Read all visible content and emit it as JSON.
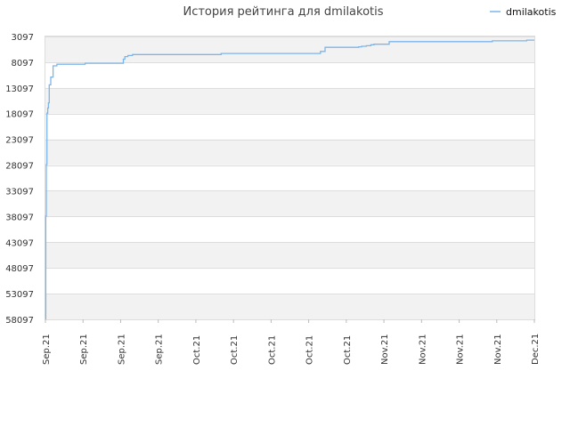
{
  "chart_data": {
    "type": "line",
    "title": "История рейтинга для dmilakotis",
    "xlabel": "",
    "ylabel": "",
    "legend": {
      "position": "top-right",
      "entries": [
        "dmilakotis"
      ]
    },
    "y_reversed": true,
    "ylim": [
      58097,
      3097
    ],
    "y_ticks": [
      3097,
      8097,
      13097,
      18097,
      23097,
      28097,
      33097,
      38097,
      43097,
      48097,
      53097,
      58097
    ],
    "y_tick_labels": [
      "3097",
      "8097",
      "13097",
      "18097",
      "23097",
      "28097",
      "33097",
      "38097",
      "43097",
      "48097",
      "53097",
      "58097"
    ],
    "x_tick_labels": [
      "Sep.21",
      "Sep.21",
      "Sep.21",
      "Sep.21",
      "Oct.21",
      "Oct.21",
      "Oct.21",
      "Oct.21",
      "Oct.21",
      "Nov.21",
      "Nov.21",
      "Nov.21",
      "Nov.21",
      "Dec.21"
    ],
    "grid": true,
    "colors": {
      "series": "#7cb5ec",
      "band": "#f2f2f2",
      "grid": "#dddddd"
    },
    "series": [
      {
        "name": "dmilakotis",
        "x": [
          0.0,
          0.05,
          0.12,
          0.2,
          0.3,
          0.4,
          0.5,
          0.7,
          1.0,
          1.5,
          2.0,
          5.0,
          5.2,
          10.0,
          10.2,
          10.4,
          10.8,
          11.4,
          12.0,
          22.0,
          23.0,
          35.5,
          36.0,
          36.6,
          38.0,
          41.0,
          41.4,
          42.0,
          42.6,
          43.0,
          44.0,
          45.0,
          58.0,
          58.5,
          62.0,
          63.0,
          64.0
        ],
        "y": [
          58000,
          38000,
          28000,
          18000,
          17000,
          16000,
          12500,
          11000,
          8800,
          8500,
          8500,
          8500,
          8300,
          8300,
          7500,
          7000,
          6800,
          6600,
          6600,
          6600,
          6400,
          6400,
          6000,
          5200,
          5200,
          5100,
          5000,
          4900,
          4700,
          4600,
          4600,
          4100,
          4100,
          3950,
          3950,
          3800,
          3800
        ]
      }
    ]
  }
}
